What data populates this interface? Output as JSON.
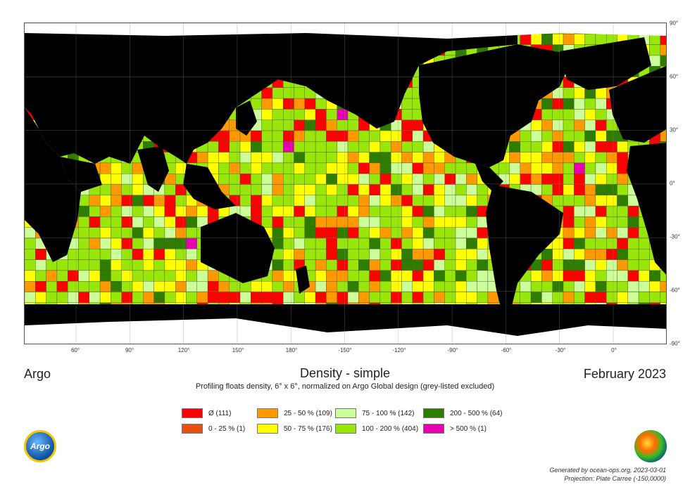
{
  "title": {
    "left": "Argo",
    "center": "Density - simple",
    "right": "February 2023",
    "subtitle": "Profiling floats density, 6° x 6°, normalized on Argo Global design (grey-listed excluded)"
  },
  "axes": {
    "longitude_ticks": [
      "60°",
      "90°",
      "120°",
      "150°",
      "180°",
      "-150°",
      "-120°",
      "-90°",
      "-60°",
      "-30°",
      "0°"
    ],
    "latitude_ticks": [
      "90°",
      "60°",
      "30°",
      "0°",
      "-30°",
      "-60°",
      "-90°"
    ]
  },
  "legend": [
    {
      "label": "Ø (111)",
      "color": "#ff0000"
    },
    {
      "label": "0 - 25 % (1)",
      "color": "#e65010"
    },
    {
      "label": "25 - 50 % (109)",
      "color": "#ff9900"
    },
    {
      "label": "50 - 75 % (176)",
      "color": "#ffff00"
    },
    {
      "label": "75 - 100 % (142)",
      "color": "#ccff99"
    },
    {
      "label": "100 - 200 % (404)",
      "color": "#99e60a"
    },
    {
      "label": "200 - 500 % (64)",
      "color": "#2e7d00"
    },
    {
      "label": "> 500 % (1)",
      "color": "#e600b0"
    }
  ],
  "logos": {
    "argo": "Argo"
  },
  "footer": {
    "line1": "Generated by ocean-ops.org, 2023-03-01",
    "line2": "Projection: Plate Carree (-150,0000)"
  },
  "map": {
    "projection": "Plate Carree",
    "grid_cell": "6° x 6°",
    "land_color": "#000000",
    "ice_color": "#ffffff",
    "missing_color": "#ffffff"
  }
}
